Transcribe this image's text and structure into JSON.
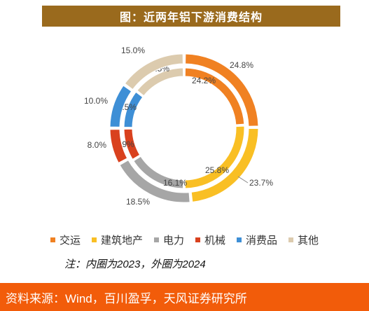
{
  "title": "图：近两年铝下游消费结构",
  "note": "注：内圈为2023，外圈为2024",
  "source": "资料来源：Wind，百川盈孚，天风证券研究所",
  "chart_data": {
    "type": "pie",
    "categories": [
      "交运",
      "建筑地产",
      "电力",
      "机械",
      "消费品",
      "其他"
    ],
    "colors": [
      "#f08122",
      "#f9bf24",
      "#a6a6a6",
      "#d9411e",
      "#3e8fd6",
      "#dccbae"
    ],
    "series": [
      {
        "name": "2023",
        "ring": "inner",
        "values": [
          24.2,
          25.8,
          16.1,
          8.9,
          10.5,
          14.5
        ],
        "labels": [
          "24.2%",
          "25.8%",
          "16.1%",
          "8.9%",
          "10.5%",
          "14.5%"
        ]
      },
      {
        "name": "2024",
        "ring": "outer",
        "values": [
          24.8,
          23.7,
          18.5,
          8.0,
          10.0,
          15.0
        ],
        "labels": [
          "24.8%",
          "23.7%",
          "18.5%",
          "8.0%",
          "10.0%",
          "15.0%"
        ]
      }
    ]
  }
}
